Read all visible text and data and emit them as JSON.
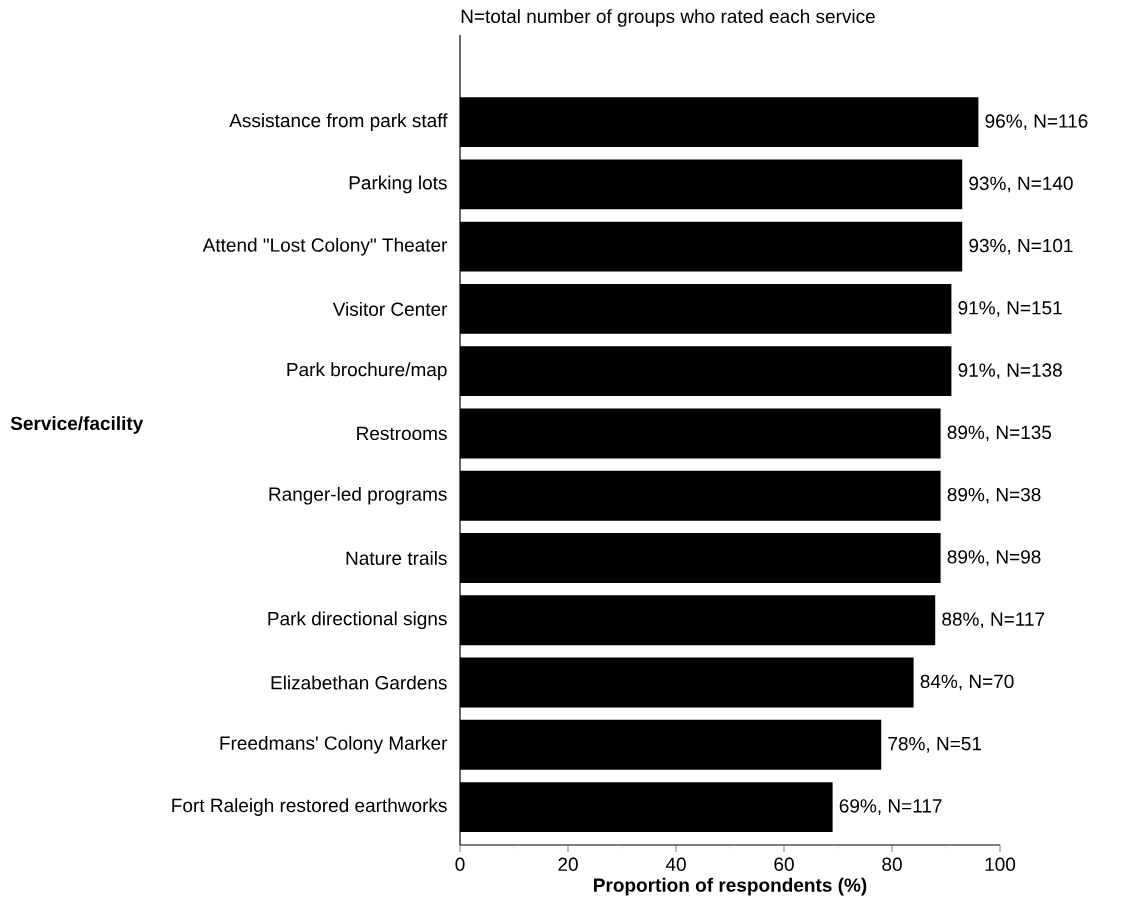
{
  "chart_data": {
    "type": "bar",
    "orientation": "horizontal",
    "annotations": [
      "N=total number of groups who rated each service"
    ],
    "ylabel": "Service/facility",
    "xlabel": "Proportion of respondents (%)",
    "categories": [
      "Assistance from park staff",
      "Parking lots",
      "Attend \"Lost Colony\" Theater",
      "Visitor Center",
      "Park brochure/map",
      "Restrooms",
      "Ranger-led programs",
      "Nature trails",
      "Park directional signs",
      "Elizabethan Gardens",
      "Freedmans' Colony Marker",
      "Fort Raleigh restored earthworks"
    ],
    "values": [
      96,
      93,
      93,
      91,
      91,
      89,
      89,
      89,
      88,
      84,
      78,
      69
    ],
    "value_labels": [
      "96%, N=116",
      "93%, N=140",
      "93%, N=101",
      "91%, N=151",
      "91%, N=138",
      "89%, N=135",
      "89%, N=38",
      "89%, N=98",
      "88%, N=117",
      "84%, N=70",
      "78%, N=51",
      "69%, N=117"
    ],
    "color": "#000000",
    "xlim": [
      0,
      100
    ],
    "xticks": [
      0,
      20,
      40,
      60,
      80,
      100
    ]
  }
}
